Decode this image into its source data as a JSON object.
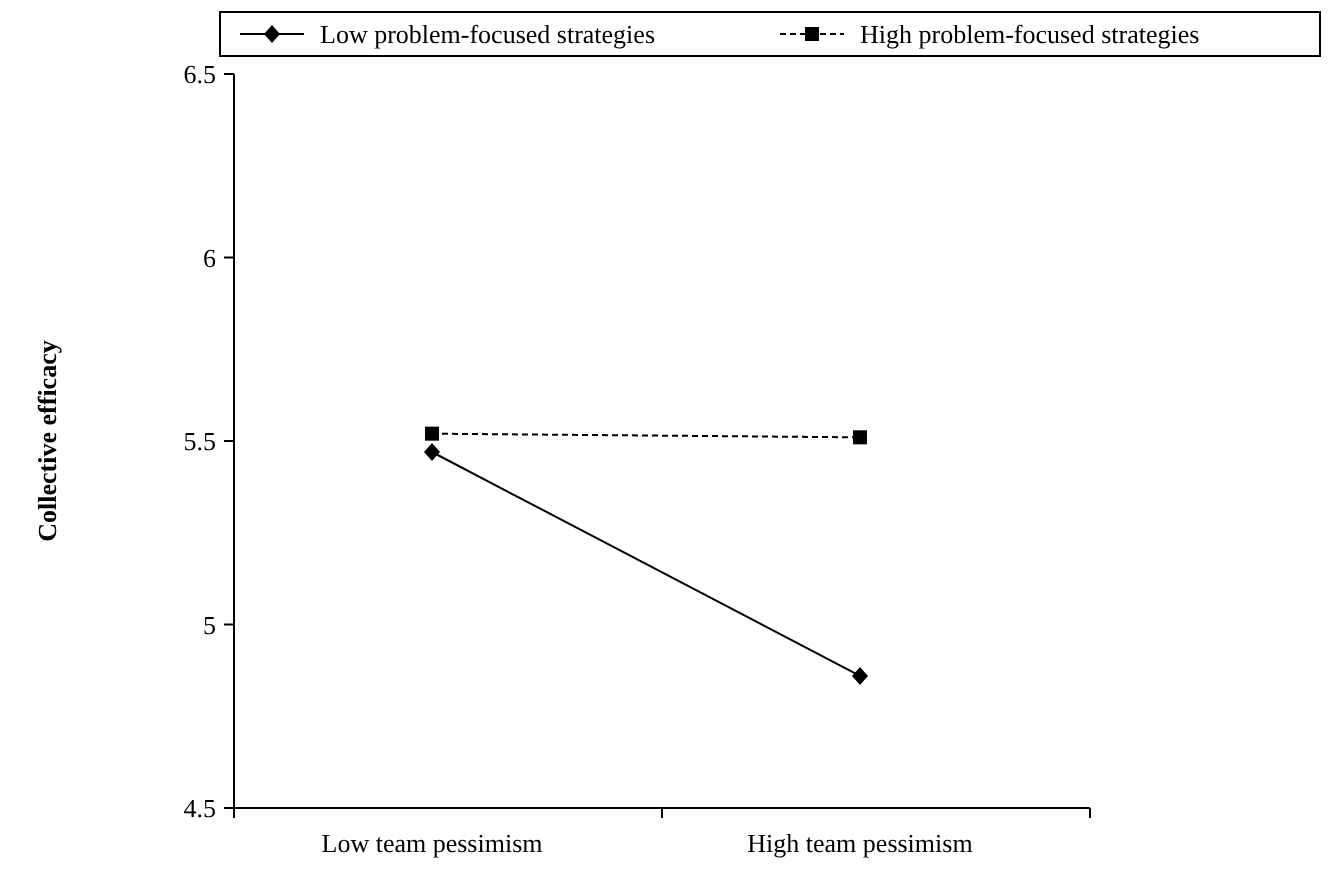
{
  "chart_data": {
    "type": "line",
    "ylabel": "Collective efficacy",
    "categories": [
      "Low team pessimism",
      "High team pessimism"
    ],
    "ylim": [
      4.5,
      6.5
    ],
    "yticks": [
      4.5,
      5,
      5.5,
      6,
      6.5
    ],
    "legend": "top",
    "grid": false,
    "series": [
      {
        "name": "Low problem-focused strategies",
        "color": "#000000",
        "values": [
          5.47,
          4.86
        ],
        "marker": "diamond",
        "line_style": "solid"
      },
      {
        "name": "High problem-focused strategies",
        "color": "#000000",
        "values": [
          5.52,
          5.51
        ],
        "marker": "square",
        "line_style": "dashed"
      }
    ]
  }
}
